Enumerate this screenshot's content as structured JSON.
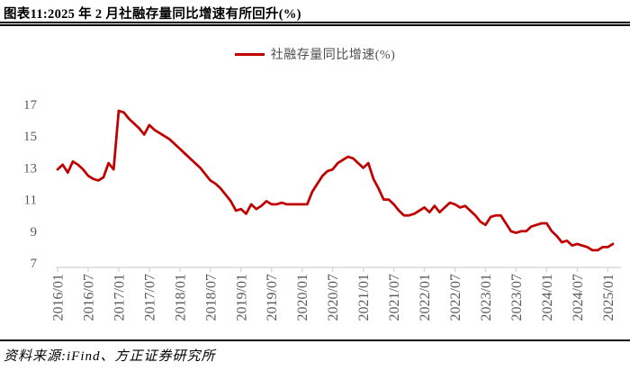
{
  "header": {
    "title": "图表11:2025 年 2 月社融存量同比增速有所回升(%)"
  },
  "legend": {
    "label": "社融存量同比增速(%)"
  },
  "footer": {
    "source": "资料来源:iFind、方正证券研究所"
  },
  "chart_data": {
    "type": "line",
    "title": "社融存量同比增速(%)",
    "legend_position": "top-center",
    "grid": false,
    "line_color": "#C00000",
    "axis_color": "#D9D9D9",
    "tick_label_color": "#595959",
    "ylim": [
      7,
      17
    ],
    "yticks": [
      7,
      9,
      11,
      13,
      15,
      17
    ],
    "xtick_labels": [
      "2016/01",
      "2016/07",
      "2017/01",
      "2017/07",
      "2018/01",
      "2018/07",
      "2019/01",
      "2019/07",
      "2020/01",
      "2020/07",
      "2021/01",
      "2021/07",
      "2022/01",
      "2022/07",
      "2023/01",
      "2023/07",
      "2024/01",
      "2024/07",
      "2025/01"
    ],
    "x": [
      "2016/01",
      "2016/02",
      "2016/03",
      "2016/04",
      "2016/05",
      "2016/06",
      "2016/07",
      "2016/08",
      "2016/09",
      "2016/10",
      "2016/11",
      "2016/12",
      "2017/01",
      "2017/02",
      "2017/03",
      "2017/04",
      "2017/05",
      "2017/06",
      "2017/07",
      "2017/08",
      "2017/09",
      "2017/10",
      "2017/11",
      "2017/12",
      "2018/01",
      "2018/02",
      "2018/03",
      "2018/04",
      "2018/05",
      "2018/06",
      "2018/07",
      "2018/08",
      "2018/09",
      "2018/10",
      "2018/11",
      "2018/12",
      "2019/01",
      "2019/02",
      "2019/03",
      "2019/04",
      "2019/05",
      "2019/06",
      "2019/07",
      "2019/08",
      "2019/09",
      "2019/10",
      "2019/11",
      "2019/12",
      "2020/01",
      "2020/02",
      "2020/03",
      "2020/04",
      "2020/05",
      "2020/06",
      "2020/07",
      "2020/08",
      "2020/09",
      "2020/10",
      "2020/11",
      "2020/12",
      "2021/01",
      "2021/02",
      "2021/03",
      "2021/04",
      "2021/05",
      "2021/06",
      "2021/07",
      "2021/08",
      "2021/09",
      "2021/10",
      "2021/11",
      "2021/12",
      "2022/01",
      "2022/02",
      "2022/03",
      "2022/04",
      "2022/05",
      "2022/06",
      "2022/07",
      "2022/08",
      "2022/09",
      "2022/10",
      "2022/11",
      "2022/12",
      "2023/01",
      "2023/02",
      "2023/03",
      "2023/04",
      "2023/05",
      "2023/06",
      "2023/07",
      "2023/08",
      "2023/09",
      "2023/10",
      "2023/11",
      "2023/12",
      "2024/01",
      "2024/02",
      "2024/03",
      "2024/04",
      "2024/05",
      "2024/06",
      "2024/07",
      "2024/08",
      "2024/09",
      "2024/10",
      "2024/11",
      "2024/12",
      "2025/01",
      "2025/02"
    ],
    "series": [
      {
        "name": "社融存量同比增速(%)",
        "color": "#C00000",
        "values": [
          12.9,
          13.2,
          12.7,
          13.4,
          13.2,
          12.9,
          12.5,
          12.3,
          12.2,
          12.4,
          13.3,
          12.9,
          16.6,
          16.5,
          16.1,
          15.8,
          15.5,
          15.1,
          15.7,
          15.4,
          15.2,
          15.0,
          14.8,
          14.5,
          14.2,
          13.9,
          13.6,
          13.3,
          13.0,
          12.6,
          12.2,
          12.0,
          11.7,
          11.3,
          10.9,
          10.3,
          10.4,
          10.1,
          10.7,
          10.4,
          10.6,
          10.9,
          10.7,
          10.7,
          10.8,
          10.7,
          10.7,
          10.7,
          10.7,
          10.7,
          11.5,
          12.0,
          12.5,
          12.8,
          12.9,
          13.3,
          13.5,
          13.7,
          13.6,
          13.3,
          13.0,
          13.3,
          12.3,
          11.7,
          11.0,
          11.0,
          10.7,
          10.3,
          10.0,
          10.0,
          10.1,
          10.3,
          10.5,
          10.2,
          10.6,
          10.2,
          10.5,
          10.8,
          10.7,
          10.5,
          10.6,
          10.3,
          10.0,
          9.6,
          9.4,
          9.9,
          10.0,
          10.0,
          9.5,
          9.0,
          8.9,
          9.0,
          9.0,
          9.3,
          9.4,
          9.5,
          9.5,
          9.0,
          8.7,
          8.3,
          8.4,
          8.1,
          8.2,
          8.1,
          8.0,
          7.8,
          7.8,
          8.0,
          8.0,
          8.2
        ]
      }
    ]
  }
}
